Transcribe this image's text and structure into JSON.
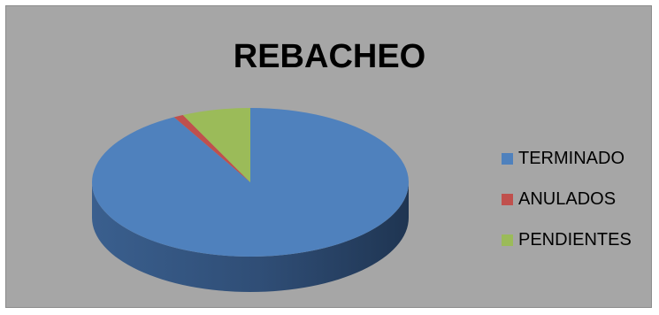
{
  "chart_data": {
    "type": "pie",
    "title": "REBACHEO",
    "categories": [
      "TERMINADO",
      "ANULADOS",
      "PENDIENTES"
    ],
    "values": [
      92,
      1,
      7
    ],
    "colors": [
      "#4f81bd",
      "#c0504d",
      "#9bbb59"
    ],
    "legend_position": "right",
    "style": "3d"
  }
}
